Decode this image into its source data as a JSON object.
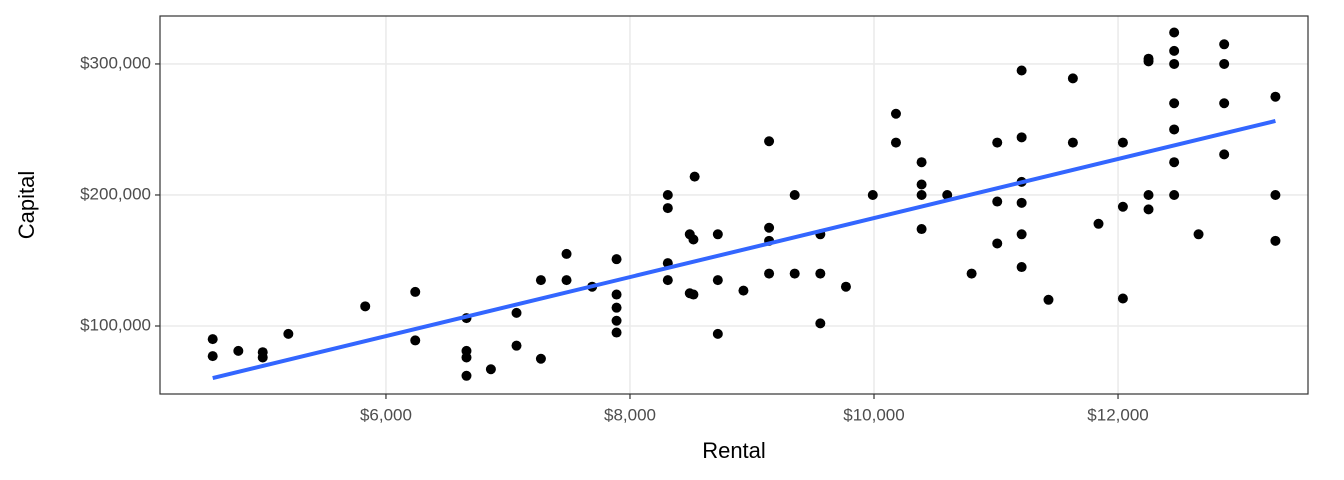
{
  "chart_data": {
    "type": "scatter",
    "x_label": "Rental",
    "y_label": "Capital",
    "color": "#000000",
    "x": [
      4580,
      4580,
      4790,
      4990,
      4990,
      5200,
      5830,
      6240,
      6240,
      6660,
      6660,
      6660,
      6660,
      6860,
      7070,
      7070,
      7270,
      7270,
      7480,
      7480,
      7690,
      7890,
      7890,
      7890,
      7890,
      7890,
      8310,
      8310,
      8310,
      8310,
      8490,
      8520,
      8490,
      8520,
      8530,
      8720,
      8720,
      8720,
      8930,
      9140,
      9140,
      9140,
      9140,
      9350,
      9350,
      9560,
      9560,
      9560,
      9770,
      9990,
      10180,
      10180,
      10390,
      10390,
      10390,
      10390,
      10600,
      10800,
      11010,
      11010,
      11010,
      11210,
      11210,
      11210,
      11210,
      11210,
      11210,
      11430,
      11630,
      11630,
      11840,
      12040,
      12040,
      12040,
      12250,
      12250,
      12250,
      12250,
      12460,
      12460,
      12460,
      12460,
      12460,
      12460,
      12460,
      12660,
      12870,
      12870,
      12870,
      12870,
      13290,
      13290,
      13290
    ],
    "values": [
      90000,
      77000,
      81000,
      80000,
      76000,
      94000,
      115000,
      126000,
      89000,
      106000,
      81000,
      76000,
      62000,
      67000,
      110000,
      85000,
      135000,
      75000,
      155000,
      135000,
      130000,
      151000,
      124000,
      114000,
      104000,
      95000,
      200000,
      190000,
      148000,
      135000,
      170000,
      166000,
      125000,
      124000,
      214000,
      170000,
      135000,
      94000,
      127000,
      241000,
      175000,
      165000,
      140000,
      200000,
      140000,
      170000,
      140000,
      102000,
      130000,
      200000,
      262000,
      240000,
      225000,
      208000,
      200000,
      174000,
      200000,
      140000,
      240000,
      195000,
      163000,
      295000,
      244000,
      210000,
      194000,
      170000,
      145000,
      120000,
      289000,
      240000,
      178000,
      240000,
      191000,
      121000,
      304000,
      302000,
      200000,
      189000,
      324000,
      310000,
      300000,
      270000,
      250000,
      225000,
      200000,
      170000,
      315000,
      300000,
      270000,
      231000,
      275000,
      200000,
      165000
    ],
    "trend": {
      "x": [
        4580,
        13290
      ],
      "values": [
        60300,
        256500
      ],
      "color": "#3366ff"
    },
    "xlim": [
      4148,
      13557
    ],
    "ylim": [
      48100,
      336600
    ],
    "xticks": [
      {
        "value": 6000,
        "label": "$6,000"
      },
      {
        "value": 8000,
        "label": "$8,000"
      },
      {
        "value": 10000,
        "label": "$10,000"
      },
      {
        "value": 12000,
        "label": "$12,000"
      }
    ],
    "yticks": [
      {
        "value": 100000,
        "label": "$100,000"
      },
      {
        "value": 200000,
        "label": "$200,000"
      },
      {
        "value": 300000,
        "label": "$300,000"
      }
    ],
    "grid": true
  }
}
